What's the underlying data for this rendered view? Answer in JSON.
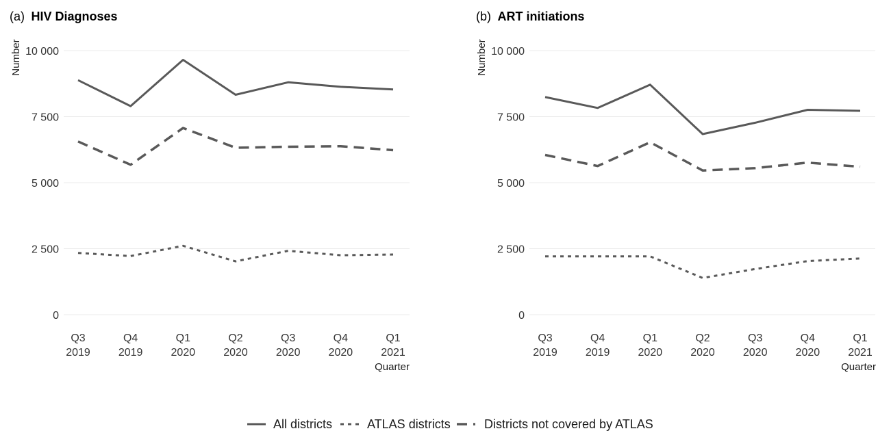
{
  "chart_data": [
    {
      "type": "line",
      "title_prefix": "(a)",
      "title": "HIV Diagnoses",
      "xlabel": "Quarter",
      "ylabel": "Number",
      "categories": [
        [
          "Q3",
          "2019"
        ],
        [
          "Q4",
          "2019"
        ],
        [
          "Q1",
          "2020"
        ],
        [
          "Q2",
          "2020"
        ],
        [
          "Q3",
          "2020"
        ],
        [
          "Q4",
          "2020"
        ],
        [
          "Q1",
          "2021"
        ]
      ],
      "yticks": [
        0,
        2500,
        5000,
        7500,
        10000
      ],
      "ytick_labels": [
        "0",
        "2 500",
        "5 000",
        "7 500",
        "10 000"
      ],
      "ylim": [
        0,
        10000
      ],
      "grid": true,
      "series": [
        {
          "name": "All districts",
          "values": [
            8880,
            7900,
            9650,
            8330,
            8800,
            8630,
            8530
          ]
        },
        {
          "name": "ATLAS districts",
          "values": [
            2340,
            2220,
            2610,
            2020,
            2420,
            2250,
            2280
          ]
        },
        {
          "name": "Districts not covered by ATLAS",
          "values": [
            6560,
            5680,
            7070,
            6320,
            6360,
            6380,
            6230
          ]
        }
      ]
    },
    {
      "type": "line",
      "title_prefix": "(b)",
      "title": "ART initiations",
      "xlabel": "Quarter",
      "ylabel": "Number",
      "categories": [
        [
          "Q3",
          "2019"
        ],
        [
          "Q4",
          "2019"
        ],
        [
          "Q1",
          "2020"
        ],
        [
          "Q2",
          "2020"
        ],
        [
          "Q3",
          "2020"
        ],
        [
          "Q4",
          "2020"
        ],
        [
          "Q1",
          "2021"
        ]
      ],
      "yticks": [
        0,
        2500,
        5000,
        7500,
        10000
      ],
      "ytick_labels": [
        "0",
        "2 500",
        "5 000",
        "7 500",
        "10 000"
      ],
      "ylim": [
        0,
        10000
      ],
      "grid": true,
      "series": [
        {
          "name": "All districts",
          "values": [
            8240,
            7830,
            8710,
            6840,
            7270,
            7760,
            7720
          ]
        },
        {
          "name": "ATLAS districts",
          "values": [
            2210,
            2210,
            2210,
            1390,
            1730,
            2030,
            2130
          ]
        },
        {
          "name": "Districts not covered by ATLAS",
          "values": [
            6050,
            5630,
            6530,
            5460,
            5550,
            5760,
            5600
          ]
        }
      ]
    }
  ],
  "legend": {
    "position": "bottom",
    "items": [
      {
        "label": "All districts",
        "style": "solid"
      },
      {
        "label": "ATLAS districts",
        "style": "dotted"
      },
      {
        "label": "Districts not covered by ATLAS",
        "style": "dashed"
      }
    ]
  },
  "colors": {
    "line": "#595959",
    "grid": "#ebebeb",
    "text": "#1a1a1a"
  }
}
